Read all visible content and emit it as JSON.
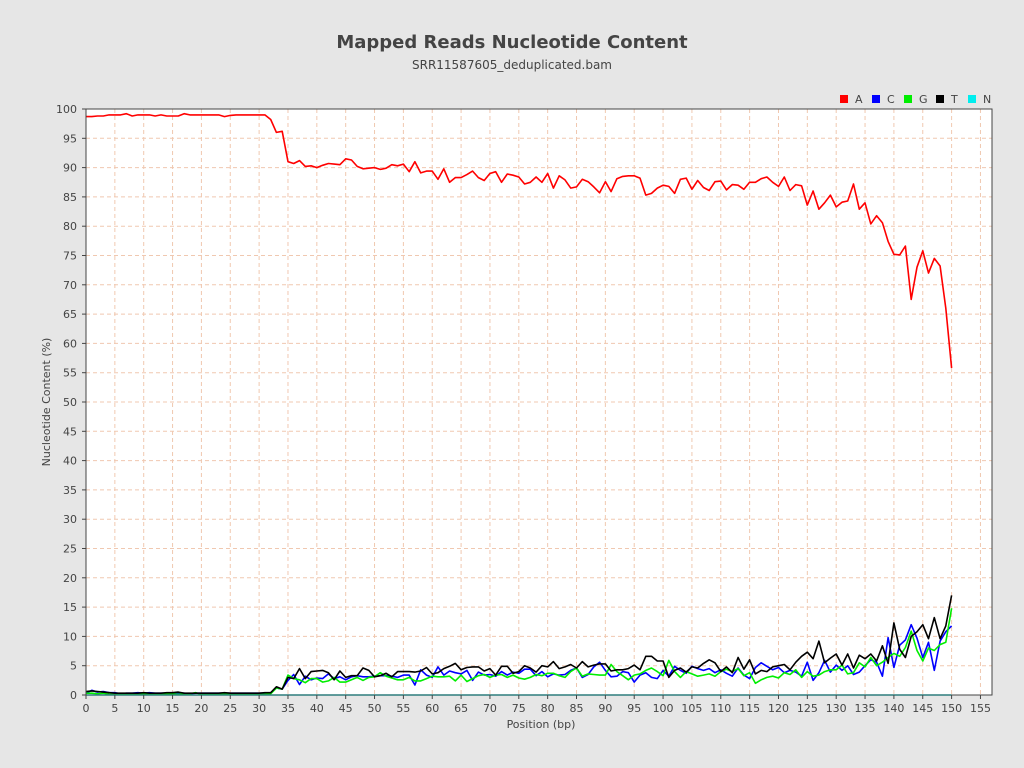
{
  "chart_data": {
    "type": "line",
    "title": "Mapped Reads Nucleotide Content",
    "subtitle": "SRR11587605_deduplicated.bam",
    "xlabel": "Position (bp)",
    "ylabel": "Nucleotide Content (%)",
    "xlim": [
      0,
      157
    ],
    "ylim": [
      0,
      100
    ],
    "xticks": [
      0,
      5,
      10,
      15,
      20,
      25,
      30,
      35,
      40,
      45,
      50,
      55,
      60,
      65,
      70,
      75,
      80,
      85,
      90,
      95,
      100,
      105,
      110,
      115,
      120,
      125,
      130,
      135,
      140,
      145,
      150,
      155
    ],
    "yticks": [
      0,
      5,
      10,
      15,
      20,
      25,
      30,
      35,
      40,
      45,
      50,
      55,
      60,
      65,
      70,
      75,
      80,
      85,
      90,
      95,
      100
    ],
    "grid": true,
    "legend_position": "top-right",
    "x": [
      0,
      1,
      2,
      3,
      4,
      5,
      6,
      7,
      8,
      9,
      10,
      11,
      12,
      13,
      14,
      15,
      16,
      17,
      18,
      19,
      20,
      21,
      22,
      23,
      24,
      25,
      26,
      27,
      28,
      29,
      30,
      31,
      32,
      33,
      34,
      35,
      36,
      37,
      38,
      39,
      40,
      41,
      42,
      43,
      44,
      45,
      46,
      47,
      48,
      49,
      50,
      51,
      52,
      53,
      54,
      55,
      56,
      57,
      58,
      59,
      60,
      61,
      62,
      63,
      64,
      65,
      66,
      67,
      68,
      69,
      70,
      71,
      72,
      73,
      74,
      75,
      76,
      77,
      78,
      79,
      80,
      81,
      82,
      83,
      84,
      85,
      86,
      87,
      88,
      89,
      90,
      91,
      92,
      93,
      94,
      95,
      96,
      97,
      98,
      99,
      100,
      101,
      102,
      103,
      104,
      105,
      106,
      107,
      108,
      109,
      110,
      111,
      112,
      113,
      114,
      115,
      116,
      117,
      118,
      119,
      120,
      121,
      122,
      123,
      124,
      125,
      126,
      127,
      128,
      129,
      130,
      131,
      132,
      133,
      134,
      135,
      136,
      137,
      138,
      139,
      140,
      141,
      142,
      143,
      144,
      145,
      146,
      147,
      148,
      149,
      150
    ],
    "series": [
      {
        "name": "A",
        "color": "#ff0000",
        "values": [
          98.7,
          98.7,
          98.8,
          98.8,
          99.0,
          99.0,
          99.0,
          99.2,
          98.8,
          99.0,
          99.0,
          99.0,
          98.8,
          99.0,
          98.8,
          98.8,
          98.8,
          99.2,
          99.0,
          99.0,
          99.0,
          99.0,
          99.0,
          99.0,
          98.7,
          98.9,
          99.0,
          99.0,
          99.0,
          99.0,
          99.0,
          99.0,
          98.2,
          96.0,
          96.2,
          91.0,
          90.7,
          91.2,
          90.2,
          90.3,
          90.0,
          90.4,
          90.7,
          90.6,
          90.5,
          91.5,
          91.3,
          90.2,
          89.8,
          89.9,
          90.0,
          89.7,
          89.9,
          90.5,
          90.3,
          90.6,
          89.3,
          91.0,
          89.1,
          89.4,
          89.4,
          88.0,
          89.8,
          87.5,
          88.3,
          88.3,
          88.8,
          89.4,
          88.3,
          87.8,
          89.0,
          89.3,
          87.5,
          88.9,
          88.7,
          88.4,
          87.2,
          87.5,
          88.4,
          87.5,
          89.0,
          86.5,
          88.6,
          87.9,
          86.5,
          86.7,
          88.0,
          87.6,
          86.7,
          85.7,
          87.6,
          85.9,
          88.1,
          88.5,
          88.6,
          88.6,
          88.2,
          85.3,
          85.6,
          86.5,
          87.0,
          86.8,
          85.6,
          88.0,
          88.2,
          86.3,
          87.8,
          86.6,
          86.1,
          87.6,
          87.7,
          86.2,
          87.1,
          87.0,
          86.3,
          87.5,
          87.5,
          88.1,
          88.4,
          87.5,
          86.8,
          88.4,
          86.1,
          87.1,
          86.9,
          83.6,
          86.0,
          82.9,
          84.0,
          85.3,
          83.3,
          84.1,
          84.3,
          87.2,
          82.9,
          84.0,
          80.4,
          81.8,
          80.6,
          77.4,
          75.2,
          75.1,
          76.6,
          67.5,
          73.0,
          75.8,
          72.0,
          74.5,
          73.2,
          66.0,
          55.8
        ]
      },
      {
        "name": "C",
        "color": "#0000ff",
        "values": [
          0.3,
          0.8,
          0.5,
          0.6,
          0.4,
          0.4,
          0.2,
          0.3,
          0.3,
          0.4,
          0.3,
          0.4,
          0.3,
          0.3,
          0.3,
          0.4,
          0.3,
          0.3,
          0.2,
          0.3,
          0.3,
          0.3,
          0.3,
          0.3,
          0.3,
          0.3,
          0.3,
          0.3,
          0.3,
          0.3,
          0.3,
          0.3,
          0.4,
          1.2,
          1.0,
          2.5,
          3.5,
          1.8,
          3.2,
          2.6,
          2.9,
          2.8,
          3.6,
          2.8,
          3.1,
          2.6,
          3.1,
          3.3,
          3.1,
          3.1,
          3.2,
          3.3,
          3.3,
          3.2,
          3.0,
          3.4,
          3.4,
          1.7,
          4.3,
          3.4,
          3.0,
          4.8,
          3.4,
          4.1,
          3.8,
          3.6,
          4.2,
          2.5,
          3.9,
          3.4,
          3.5,
          3.2,
          4.0,
          3.4,
          3.9,
          3.7,
          4.4,
          4.4,
          3.3,
          4.0,
          3.1,
          3.6,
          3.4,
          3.5,
          4.2,
          4.6,
          3.0,
          3.5,
          4.8,
          5.6,
          4.2,
          3.1,
          3.2,
          4.0,
          3.8,
          2.2,
          3.4,
          3.8,
          3.0,
          2.8,
          4.2,
          3.2,
          4.9,
          4.2,
          3.7,
          4.9,
          4.5,
          4.2,
          4.5,
          3.8,
          4.3,
          3.7,
          3.2,
          4.6,
          3.4,
          2.8,
          4.7,
          5.5,
          4.9,
          4.3,
          4.7,
          3.8,
          4.2,
          3.9,
          3.2,
          5.6,
          2.5,
          3.8,
          5.9,
          3.9,
          5.1,
          4.2,
          5.0,
          3.5,
          3.9,
          5.0,
          6.0,
          5.6,
          3.2,
          9.8,
          4.7,
          8.5,
          9.4,
          12.0,
          9.7,
          6.4,
          9.0,
          4.2,
          9.2,
          10.8,
          11.8
        ]
      },
      {
        "name": "G",
        "color": "#00ee00",
        "values": [
          0.3,
          0.3,
          0.2,
          0.3,
          0.1,
          0.1,
          0.1,
          0.1,
          0.1,
          0.2,
          0.2,
          0.1,
          0.1,
          0.2,
          0.2,
          0.2,
          0.1,
          0.2,
          0.2,
          0.4,
          0.1,
          0.2,
          0.2,
          0.2,
          0.1,
          0.2,
          0.1,
          0.2,
          0.1,
          0.1,
          0.1,
          0.1,
          0.2,
          1.2,
          1.0,
          3.4,
          2.8,
          2.6,
          2.1,
          2.8,
          2.8,
          2.2,
          2.4,
          3.0,
          2.2,
          2.2,
          2.6,
          3.0,
          2.5,
          3.0,
          3.1,
          3.8,
          3.2,
          2.9,
          2.6,
          2.6,
          3.0,
          2.4,
          2.4,
          2.8,
          3.2,
          3.1,
          3.1,
          3.2,
          2.4,
          3.4,
          2.3,
          2.8,
          3.3,
          3.5,
          3.0,
          3.4,
          3.5,
          3.0,
          3.4,
          2.9,
          2.7,
          3.0,
          3.5,
          3.3,
          3.7,
          3.7,
          3.3,
          3.0,
          4.0,
          4.6,
          3.2,
          3.6,
          3.5,
          3.4,
          3.4,
          5.2,
          4.0,
          3.3,
          2.6,
          3.4,
          3.6,
          4.2,
          4.6,
          4.0,
          3.3,
          5.9,
          4.0,
          3.0,
          4.0,
          3.6,
          3.2,
          3.4,
          3.6,
          3.2,
          4.0,
          4.4,
          4.0,
          4.5,
          3.3,
          3.8,
          2.0,
          2.6,
          3.0,
          3.2,
          2.9,
          3.8,
          3.5,
          4.3,
          3.0,
          4.0,
          3.2,
          3.4,
          4.0,
          4.3,
          4.3,
          5.1,
          3.6,
          3.8,
          5.5,
          4.8,
          6.4,
          5.0,
          5.6,
          6.4,
          7.1,
          6.6,
          8.1,
          10.9,
          7.6,
          5.8,
          8.0,
          7.6,
          8.6,
          9.0,
          14.8
        ]
      },
      {
        "name": "T",
        "color": "#000000",
        "values": [
          0.6,
          0.7,
          0.6,
          0.5,
          0.4,
          0.3,
          0.3,
          0.3,
          0.3,
          0.3,
          0.4,
          0.3,
          0.3,
          0.3,
          0.4,
          0.4,
          0.5,
          0.3,
          0.3,
          0.3,
          0.3,
          0.3,
          0.3,
          0.3,
          0.4,
          0.3,
          0.3,
          0.3,
          0.3,
          0.3,
          0.3,
          0.4,
          0.4,
          1.4,
          1.0,
          3.0,
          2.8,
          4.5,
          2.8,
          4.0,
          4.1,
          4.2,
          3.8,
          2.6,
          4.1,
          3.0,
          3.3,
          3.3,
          4.6,
          4.2,
          3.1,
          3.3,
          3.7,
          3.1,
          4.0,
          4.0,
          4.0,
          3.9,
          4.1,
          4.7,
          3.6,
          3.8,
          4.5,
          4.9,
          5.4,
          4.3,
          4.7,
          4.8,
          4.8,
          4.1,
          4.5,
          3.4,
          4.9,
          4.9,
          3.7,
          4.0,
          5.0,
          4.6,
          3.9,
          5.0,
          4.8,
          5.7,
          4.5,
          4.8,
          5.2,
          4.6,
          5.7,
          4.8,
          5.1,
          5.3,
          5.3,
          4.1,
          4.3,
          4.3,
          4.5,
          5.1,
          4.3,
          6.6,
          6.6,
          5.8,
          5.8,
          3.0,
          4.2,
          4.6,
          3.9,
          4.8,
          4.6,
          5.4,
          6.0,
          5.5,
          4.0,
          4.8,
          3.8,
          6.4,
          4.4,
          6.0,
          3.6,
          4.2,
          4.0,
          4.8,
          5.0,
          5.2,
          4.3,
          5.6,
          6.6,
          7.3,
          6.2,
          9.2,
          5.5,
          6.3,
          7.0,
          5.1,
          7.0,
          4.6,
          6.8,
          6.2,
          7.0,
          5.8,
          8.4,
          5.4,
          12.3,
          7.8,
          6.4,
          10.0,
          10.8,
          12.0,
          9.6,
          13.2,
          9.6,
          11.8,
          17.0
        ]
      },
      {
        "name": "N",
        "color": "#00eeee",
        "values": [
          0,
          0,
          0,
          0,
          0,
          0,
          0,
          0,
          0,
          0,
          0,
          0,
          0,
          0,
          0,
          0,
          0,
          0,
          0,
          0,
          0,
          0,
          0,
          0,
          0,
          0,
          0,
          0,
          0,
          0,
          0,
          0,
          0,
          0,
          0,
          0,
          0,
          0,
          0,
          0,
          0,
          0,
          0,
          0,
          0,
          0,
          0,
          0,
          0,
          0,
          0,
          0,
          0,
          0,
          0,
          0,
          0,
          0,
          0,
          0,
          0,
          0,
          0,
          0,
          0,
          0,
          0,
          0,
          0,
          0,
          0,
          0,
          0,
          0,
          0,
          0,
          0,
          0,
          0,
          0,
          0,
          0,
          0,
          0,
          0,
          0,
          0,
          0,
          0,
          0,
          0,
          0,
          0,
          0,
          0,
          0,
          0,
          0,
          0,
          0,
          0,
          0,
          0,
          0,
          0,
          0,
          0,
          0,
          0,
          0,
          0,
          0,
          0,
          0,
          0,
          0,
          0,
          0,
          0,
          0,
          0,
          0,
          0,
          0,
          0,
          0,
          0,
          0,
          0,
          0,
          0,
          0,
          0,
          0,
          0,
          0,
          0,
          0,
          0,
          0,
          0,
          0,
          0,
          0,
          0,
          0,
          0,
          0,
          0,
          0,
          0
        ]
      }
    ]
  },
  "colors": {
    "background": "#e6e6e6",
    "plot_background": "#ffffff",
    "grid": "#f0c8b0",
    "axis": "#444444"
  }
}
